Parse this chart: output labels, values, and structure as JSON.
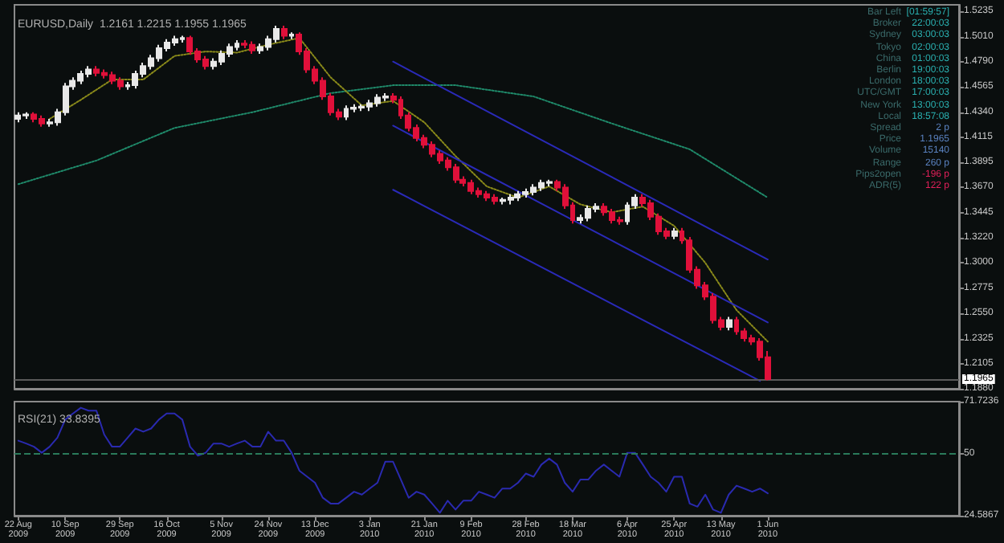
{
  "chart_data": [
    {
      "type": "candlestick",
      "title": "EURUSD,Daily  1.2161 1.2215 1.1955 1.1965",
      "ohlc": [
        [
          1.428,
          1.434,
          1.425,
          1.431
        ],
        [
          1.431,
          1.434,
          1.428,
          1.432
        ],
        [
          1.432,
          1.434,
          1.425,
          1.428
        ],
        [
          1.428,
          1.431,
          1.421,
          1.424
        ],
        [
          1.424,
          1.428,
          1.421,
          1.425
        ],
        [
          1.425,
          1.437,
          1.422,
          1.434
        ],
        [
          1.434,
          1.46,
          1.431,
          1.457
        ],
        [
          1.457,
          1.465,
          1.454,
          1.462
        ],
        [
          1.462,
          1.471,
          1.459,
          1.468
        ],
        [
          1.468,
          1.475,
          1.465,
          1.472
        ],
        [
          1.472,
          1.475,
          1.466,
          1.469
        ],
        [
          1.469,
          1.472,
          1.464,
          1.467
        ],
        [
          1.467,
          1.47,
          1.459,
          1.462
        ],
        [
          1.462,
          1.465,
          1.454,
          1.457
        ],
        [
          1.457,
          1.461,
          1.454,
          1.458
        ],
        [
          1.458,
          1.471,
          1.455,
          1.468
        ],
        [
          1.468,
          1.478,
          1.465,
          1.475
        ],
        [
          1.475,
          1.485,
          1.472,
          1.482
        ],
        [
          1.482,
          1.494,
          1.479,
          1.491
        ],
        [
          1.491,
          1.499,
          1.488,
          1.496
        ],
        [
          1.496,
          1.502,
          1.493,
          1.499
        ],
        [
          1.499,
          1.502,
          1.496,
          1.5
        ],
        [
          1.5,
          1.502,
          1.485,
          1.488
        ],
        [
          1.488,
          1.491,
          1.478,
          1.481
        ],
        [
          1.481,
          1.484,
          1.472,
          1.475
        ],
        [
          1.475,
          1.482,
          1.472,
          1.479
        ],
        [
          1.479,
          1.489,
          1.476,
          1.486
        ],
        [
          1.486,
          1.495,
          1.483,
          1.492
        ],
        [
          1.492,
          1.498,
          1.489,
          1.495
        ],
        [
          1.495,
          1.498,
          1.491,
          1.494
        ],
        [
          1.494,
          1.497,
          1.486,
          1.489
        ],
        [
          1.489,
          1.495,
          1.486,
          1.492
        ],
        [
          1.492,
          1.502,
          1.489,
          1.499
        ],
        [
          1.499,
          1.511,
          1.496,
          1.508
        ],
        [
          1.508,
          1.511,
          1.499,
          1.502
        ],
        [
          1.502,
          1.505,
          1.499,
          1.503
        ],
        [
          1.503,
          1.505,
          1.485,
          1.488
        ],
        [
          1.488,
          1.491,
          1.469,
          1.472
        ],
        [
          1.472,
          1.475,
          1.459,
          1.462
        ],
        [
          1.462,
          1.465,
          1.445,
          1.448
        ],
        [
          1.448,
          1.451,
          1.431,
          1.434
        ],
        [
          1.434,
          1.437,
          1.427,
          1.43
        ],
        [
          1.43,
          1.44,
          1.427,
          1.437
        ],
        [
          1.437,
          1.441,
          1.434,
          1.438
        ],
        [
          1.438,
          1.441,
          1.435,
          1.439
        ],
        [
          1.439,
          1.445,
          1.435,
          1.442
        ],
        [
          1.442,
          1.45,
          1.439,
          1.447
        ],
        [
          1.447,
          1.451,
          1.444,
          1.448
        ],
        [
          1.448,
          1.451,
          1.442,
          1.445
        ],
        [
          1.445,
          1.448,
          1.428,
          1.431
        ],
        [
          1.431,
          1.434,
          1.417,
          1.42
        ],
        [
          1.42,
          1.423,
          1.408,
          1.411
        ],
        [
          1.411,
          1.414,
          1.402,
          1.405
        ],
        [
          1.405,
          1.408,
          1.394,
          1.397
        ],
        [
          1.397,
          1.4,
          1.388,
          1.391
        ],
        [
          1.391,
          1.394,
          1.382,
          1.385
        ],
        [
          1.385,
          1.388,
          1.371,
          1.374
        ],
        [
          1.374,
          1.377,
          1.368,
          1.371
        ],
        [
          1.371,
          1.374,
          1.361,
          1.364
        ],
        [
          1.364,
          1.367,
          1.358,
          1.361
        ],
        [
          1.361,
          1.364,
          1.355,
          1.358
        ],
        [
          1.358,
          1.361,
          1.352,
          1.355
        ],
        [
          1.355,
          1.358,
          1.352,
          1.356
        ],
        [
          1.356,
          1.361,
          1.352,
          1.358
        ],
        [
          1.358,
          1.364,
          1.355,
          1.361
        ],
        [
          1.361,
          1.366,
          1.358,
          1.363
        ],
        [
          1.363,
          1.37,
          1.36,
          1.367
        ],
        [
          1.367,
          1.374,
          1.364,
          1.371
        ],
        [
          1.371,
          1.374,
          1.368,
          1.372
        ],
        [
          1.372,
          1.374,
          1.364,
          1.367
        ],
        [
          1.367,
          1.37,
          1.348,
          1.351
        ],
        [
          1.351,
          1.354,
          1.335,
          1.338
        ],
        [
          1.338,
          1.343,
          1.335,
          1.34
        ],
        [
          1.34,
          1.351,
          1.337,
          1.348
        ],
        [
          1.348,
          1.353,
          1.345,
          1.35
        ],
        [
          1.35,
          1.353,
          1.342,
          1.345
        ],
        [
          1.345,
          1.348,
          1.335,
          1.338
        ],
        [
          1.338,
          1.341,
          1.334,
          1.337
        ],
        [
          1.337,
          1.354,
          1.334,
          1.351
        ],
        [
          1.351,
          1.361,
          1.348,
          1.358
        ],
        [
          1.358,
          1.361,
          1.35,
          1.353
        ],
        [
          1.353,
          1.356,
          1.338,
          1.341
        ],
        [
          1.341,
          1.344,
          1.325,
          1.328
        ],
        [
          1.328,
          1.331,
          1.321,
          1.324
        ],
        [
          1.324,
          1.331,
          1.321,
          1.328
        ],
        [
          1.328,
          1.331,
          1.317,
          1.32
        ],
        [
          1.32,
          1.323,
          1.291,
          1.294
        ],
        [
          1.294,
          1.297,
          1.277,
          1.28
        ],
        [
          1.28,
          1.283,
          1.267,
          1.27
        ],
        [
          1.27,
          1.273,
          1.246,
          1.249
        ],
        [
          1.249,
          1.252,
          1.24,
          1.243
        ],
        [
          1.243,
          1.252,
          1.24,
          1.249
        ],
        [
          1.249,
          1.252,
          1.236,
          1.239
        ],
        [
          1.239,
          1.242,
          1.23,
          1.233
        ],
        [
          1.233,
          1.236,
          1.227,
          1.23
        ],
        [
          1.23,
          1.233,
          1.213,
          1.216
        ],
        [
          1.2161,
          1.2215,
          1.1955,
          1.1965
        ],
        null,
        null,
        null,
        null,
        null,
        null,
        null,
        null,
        null,
        null,
        null,
        null,
        null,
        null,
        null,
        null,
        null,
        null,
        null,
        null,
        null,
        null,
        null,
        null
      ],
      "series": [
        {
          "type": "line",
          "color": "#1f8a6a",
          "line_style": "dotted",
          "values": [
            1.37,
            null,
            null,
            null,
            null,
            null,
            null,
            null,
            null,
            null,
            1.391,
            null,
            null,
            null,
            null,
            null,
            null,
            null,
            null,
            null,
            1.42,
            null,
            null,
            null,
            null,
            null,
            null,
            null,
            null,
            null,
            1.434,
            null,
            null,
            null,
            null,
            null,
            null,
            null,
            null,
            null,
            1.451,
            null,
            null,
            null,
            null,
            null,
            null,
            null,
            1.458,
            null,
            null,
            null,
            null,
            null,
            null,
            null,
            1.458,
            null,
            null,
            null,
            null,
            null,
            null,
            null,
            null,
            null,
            1.448,
            null,
            null,
            null,
            null,
            null,
            null,
            null,
            null,
            null,
            1.424,
            null,
            null,
            null,
            null,
            null,
            null,
            null,
            null,
            null,
            1.401,
            null,
            null,
            null,
            null,
            null,
            null,
            null,
            null,
            null,
            1.358,
            null,
            null,
            null,
            null,
            null,
            null,
            null,
            null,
            null,
            null,
            null,
            null,
            null,
            null,
            null,
            null,
            null,
            null,
            null,
            null,
            null,
            null,
            null,
            null
          ]
        },
        {
          "type": "line",
          "color": "#8a8a1a",
          "line_style": "dotted",
          "values": [
            null,
            null,
            null,
            null,
            1.428,
            null,
            null,
            null,
            1.445,
            null,
            null,
            null,
            1.463,
            null,
            null,
            null,
            1.463,
            null,
            null,
            null,
            1.484,
            null,
            null,
            null,
            1.488,
            null,
            null,
            null,
            1.487,
            null,
            null,
            null,
            1.494,
            null,
            null,
            null,
            1.5,
            null,
            null,
            null,
            1.465,
            null,
            null,
            null,
            1.44,
            null,
            null,
            null,
            1.444,
            null,
            null,
            null,
            1.425,
            null,
            null,
            null,
            1.395,
            null,
            null,
            null,
            1.368,
            null,
            null,
            null,
            1.358,
            null,
            null,
            null,
            1.368,
            null,
            null,
            null,
            1.352,
            null,
            null,
            null,
            1.345,
            null,
            null,
            null,
            1.35,
            null,
            null,
            null,
            1.333,
            null,
            null,
            null,
            1.3,
            null,
            null,
            null,
            1.258,
            null,
            null,
            null,
            1.23,
            null,
            null,
            null,
            null,
            null,
            null,
            null,
            null,
            null,
            null,
            null,
            null,
            null,
            null,
            null,
            null,
            null,
            null,
            null,
            null,
            null,
            null,
            null,
            null
          ]
        },
        {
          "type": "line",
          "color": "#2a2ab8",
          "line_style": "solid",
          "values": [
            null,
            null,
            null,
            null,
            null,
            null,
            null,
            null,
            null,
            null,
            null,
            null,
            null,
            null,
            null,
            null,
            null,
            null,
            null,
            null,
            null,
            null,
            null,
            null,
            null,
            null,
            null,
            null,
            null,
            null,
            null,
            null,
            null,
            null,
            null,
            null,
            null,
            null,
            null,
            null,
            null,
            null,
            null,
            null,
            null,
            null,
            null,
            null,
            1.479,
            null,
            null,
            null,
            null,
            null,
            null,
            null,
            null,
            null,
            null,
            null,
            null,
            null,
            null,
            null,
            null,
            null,
            null,
            null,
            null,
            null,
            null,
            null,
            null,
            null,
            null,
            null,
            null,
            null,
            null,
            null,
            null,
            null,
            null,
            null,
            null,
            null,
            null,
            null,
            null,
            null,
            null,
            null,
            null,
            null,
            null,
            null,
            1.303,
            null,
            null,
            null,
            null,
            null,
            null,
            null,
            null,
            null,
            null,
            null,
            null,
            null,
            null,
            null,
            null,
            null,
            null,
            null,
            null,
            null,
            null,
            null,
            null
          ]
        },
        {
          "type": "line",
          "color": "#2a2ab8",
          "line_style": "solid",
          "values": [
            null,
            null,
            null,
            null,
            null,
            null,
            null,
            null,
            null,
            null,
            null,
            null,
            null,
            null,
            null,
            null,
            null,
            null,
            null,
            null,
            null,
            null,
            null,
            null,
            null,
            null,
            null,
            null,
            null,
            null,
            null,
            null,
            null,
            null,
            null,
            null,
            null,
            null,
            null,
            null,
            null,
            null,
            null,
            null,
            null,
            null,
            null,
            null,
            1.422,
            null,
            null,
            null,
            null,
            null,
            null,
            null,
            null,
            null,
            null,
            null,
            null,
            null,
            null,
            null,
            null,
            null,
            null,
            null,
            null,
            null,
            null,
            null,
            null,
            null,
            null,
            null,
            null,
            null,
            null,
            null,
            null,
            null,
            null,
            null,
            null,
            null,
            null,
            null,
            null,
            null,
            null,
            null,
            null,
            null,
            null,
            null,
            1.247,
            null,
            null,
            null,
            null,
            null,
            null,
            null,
            null,
            null,
            null,
            null,
            null,
            null,
            null,
            null,
            null,
            null,
            null,
            null,
            null,
            null,
            null,
            null,
            null
          ]
        },
        {
          "type": "line",
          "color": "#2a2ab8",
          "line_style": "solid",
          "values": [
            null,
            null,
            null,
            null,
            null,
            null,
            null,
            null,
            null,
            null,
            null,
            null,
            null,
            null,
            null,
            null,
            null,
            null,
            null,
            null,
            null,
            null,
            null,
            null,
            null,
            null,
            null,
            null,
            null,
            null,
            null,
            null,
            null,
            null,
            null,
            null,
            null,
            null,
            null,
            null,
            null,
            null,
            null,
            null,
            null,
            null,
            null,
            null,
            1.365,
            null,
            null,
            null,
            null,
            null,
            null,
            null,
            null,
            null,
            null,
            null,
            null,
            null,
            null,
            null,
            null,
            null,
            null,
            null,
            null,
            null,
            null,
            null,
            null,
            null,
            null,
            null,
            null,
            null,
            null,
            null,
            null,
            null,
            null,
            null,
            null,
            null,
            null,
            null,
            null,
            null,
            null,
            null,
            null,
            null,
            null,
            1.195,
            null,
            null,
            null,
            null,
            null,
            null,
            null,
            null,
            null,
            null,
            null,
            null,
            null,
            null,
            null,
            null,
            null,
            null,
            null,
            null,
            null,
            null,
            null,
            null,
            null
          ]
        }
      ],
      "ylim": [
        1.188,
        1.5295
      ],
      "yticks": [
        1.5235,
        {
          "value": 1.501,
          "label": "1.5010"
        },
        {
          "value": 1.479,
          "label": "1.4790"
        },
        1.4565,
        {
          "value": 1.434,
          "label": "1.4340"
        },
        1.4115,
        1.3895,
        {
          "value": 1.367,
          "label": "1.3670"
        },
        1.3445,
        {
          "value": 1.322,
          "label": "1.3220"
        },
        {
          "value": 1.3,
          "label": "1.3000"
        },
        1.2775,
        {
          "value": 1.255,
          "label": "1.2550"
        },
        1.2325,
        1.2105,
        {
          "value": 1.188,
          "label": "1.1880"
        }
      ],
      "ref_lines": [
        {
          "axis": "y",
          "value": 1.1965,
          "label": "1.1965",
          "color": "#5a5a5a"
        }
      ],
      "tick_labels": "y"
    },
    {
      "type": "line",
      "title": "RSI(21) 33.8395",
      "categories": [
        "22 Aug 2009",
        null,
        null,
        null,
        null,
        null,
        "10 Sep 2009",
        null,
        null,
        null,
        null,
        null,
        null,
        "29 Sep 2009",
        null,
        null,
        null,
        null,
        null,
        "16 Oct 2009",
        null,
        null,
        null,
        null,
        null,
        null,
        "5 Nov 2009",
        null,
        null,
        null,
        null,
        null,
        "24 Nov 2009",
        null,
        null,
        null,
        null,
        null,
        "13 Dec 2009",
        null,
        null,
        null,
        null,
        null,
        null,
        "3 Jan 2010",
        null,
        null,
        null,
        null,
        null,
        null,
        "21 Jan 2010",
        null,
        null,
        null,
        null,
        null,
        "9 Feb 2010",
        null,
        null,
        null,
        null,
        null,
        null,
        "28 Feb 2010",
        null,
        null,
        null,
        null,
        null,
        "18 Mar 2010",
        null,
        null,
        null,
        null,
        null,
        null,
        "6 Apr 2010",
        null,
        null,
        null,
        null,
        null,
        "25 Apr 2010",
        null,
        null,
        null,
        null,
        null,
        "13 May 2010",
        null,
        null,
        null,
        null,
        null,
        "1 Jun 2010",
        null,
        null,
        null,
        null,
        null,
        null,
        null,
        null,
        null,
        null,
        null,
        null,
        null,
        null,
        null,
        null,
        null,
        null,
        null,
        null,
        null,
        null,
        null,
        null
      ],
      "series": [
        {
          "color": "#2a2ab0",
          "values": [
            55.6,
            54.4,
            53.1,
            50.6,
            53.1,
            56.8,
            64.3,
            66.8,
            69.2,
            68.0,
            68.0,
            58.1,
            53.1,
            53.1,
            56.8,
            60.6,
            59.3,
            60.6,
            64.3,
            66.8,
            66.8,
            64.3,
            53.1,
            49.4,
            50.6,
            54.4,
            54.4,
            53.1,
            54.4,
            55.6,
            53.1,
            53.1,
            59.3,
            55.6,
            55.6,
            50.6,
            43.2,
            40.7,
            38.2,
            32.0,
            29.6,
            29.6,
            32.0,
            34.5,
            33.3,
            35.8,
            38.2,
            46.9,
            46.9,
            39.5,
            32.0,
            34.5,
            33.3,
            29.6,
            25.8,
            30.8,
            27.1,
            30.8,
            30.8,
            34.5,
            33.3,
            32.0,
            35.8,
            35.8,
            38.2,
            42.0,
            40.7,
            45.7,
            48.2,
            45.7,
            38.2,
            34.5,
            39.5,
            39.5,
            43.2,
            45.7,
            43.2,
            40.7,
            50.6,
            50.6,
            45.7,
            40.7,
            38.2,
            34.5,
            40.7,
            40.7,
            29.6,
            28.3,
            33.3,
            27.1,
            25.8,
            33.3,
            37.0,
            35.8,
            34.5,
            35.8,
            33.8395,
            null,
            null,
            null,
            null,
            null,
            null,
            null,
            null,
            null,
            null,
            null,
            null,
            null,
            null,
            null,
            null,
            null,
            null,
            null,
            null,
            null,
            null,
            null,
            null
          ]
        }
      ],
      "ylim": [
        24.5867,
        71.7236
      ],
      "yticks": [
        71.7236,
        50,
        24.5867
      ],
      "ref_lines": [
        {
          "axis": "y",
          "value": 50,
          "color": "#2a7a5a",
          "line_style": "dashed"
        }
      ]
    },
    {
      "type": "other",
      "annotations": [
        "Bar Left",
        "[01:59:57]",
        "Broker",
        "22:00:03",
        "Sydney",
        "03:00:03",
        "Tokyo",
        "02:00:03",
        "China",
        "01:00:03",
        "Berlin",
        "19:00:03",
        "London",
        "18:00:03",
        "UTC/GMT",
        "17:00:03",
        "New York",
        "13:00:03",
        "Local",
        "18:57:08",
        "Spread",
        "2 p",
        "Price",
        "1.1965",
        "Volume",
        "15140",
        "Range",
        "260 p",
        "Pips2open",
        "-196 p",
        "ADR(5)",
        "122 p"
      ]
    }
  ]
}
